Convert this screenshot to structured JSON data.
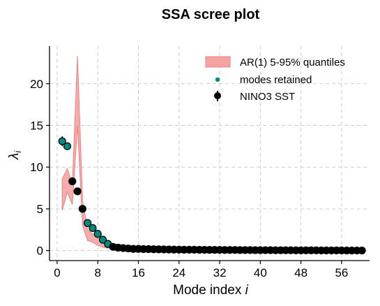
{
  "chart_data": {
    "type": "scatter",
    "title": "SSA scree plot",
    "xlabel": "Mode index",
    "xlabel_var": "i",
    "ylabel_sym": "λ",
    "ylabel_sub": "i",
    "xlim": [
      -1.5,
      61.5
    ],
    "ylim": [
      -1.2,
      24.5
    ],
    "xticks": [
      0,
      8,
      16,
      24,
      32,
      40,
      48,
      56
    ],
    "yticks": [
      0,
      5,
      10,
      15,
      20
    ],
    "grid": true,
    "legend_position": "top-right",
    "legend": {
      "band_label": "AR(1) 5-95% quantiles",
      "retained_label": "modes retained",
      "series_label": "NINO3 SST"
    },
    "colors": {
      "band_fill": "#f4a3a3",
      "band_edge": "#f08080",
      "retained": "#008b80",
      "points": "#000000"
    },
    "series": {
      "x": [
        1,
        2,
        3,
        4,
        5,
        6,
        7,
        8,
        9,
        10,
        11,
        12,
        13,
        14,
        15,
        16,
        17,
        18,
        19,
        20,
        21,
        22,
        23,
        24,
        25,
        26,
        27,
        28,
        29,
        30,
        31,
        32,
        33,
        34,
        35,
        36,
        37,
        38,
        39,
        40,
        41,
        42,
        43,
        44,
        45,
        46,
        47,
        48,
        49,
        50,
        51,
        52,
        53,
        54,
        55,
        56,
        57,
        58,
        59,
        60
      ],
      "y": [
        13.1,
        12.5,
        8.3,
        7.1,
        5.0,
        3.3,
        2.7,
        2.0,
        1.3,
        0.8,
        0.45,
        0.35,
        0.3,
        0.25,
        0.2,
        0.2,
        0.18,
        0.17,
        0.16,
        0.15,
        0.14,
        0.13,
        0.12,
        0.11,
        0.1,
        0.1,
        0.1,
        0.09,
        0.09,
        0.08,
        0.08,
        0.08,
        0.07,
        0.07,
        0.07,
        0.06,
        0.06,
        0.06,
        0.05,
        0.05,
        0.05,
        0.05,
        0.04,
        0.04,
        0.04,
        0.04,
        0.03,
        0.03,
        0.03,
        0.03,
        0.03,
        0.02,
        0.02,
        0.02,
        0.02,
        0.02,
        0.01,
        0.01,
        0.01,
        0.01
      ],
      "err": [
        0.6,
        0.2,
        0.2,
        0.15,
        0.1,
        0.1,
        0.1,
        0.1,
        0.05,
        0.05,
        0,
        0,
        0,
        0,
        0,
        0,
        0,
        0,
        0,
        0,
        0,
        0,
        0,
        0,
        0,
        0,
        0,
        0,
        0,
        0,
        0,
        0,
        0,
        0,
        0,
        0,
        0,
        0,
        0,
        0,
        0,
        0,
        0,
        0,
        0,
        0,
        0,
        0,
        0,
        0,
        0,
        0,
        0,
        0,
        0,
        0,
        0,
        0,
        0,
        0
      ]
    },
    "retained_modes": [
      1,
      2,
      6,
      7,
      8,
      9,
      10
    ],
    "ar1_quantiles": {
      "x": [
        1,
        2,
        3,
        4,
        5,
        6,
        7,
        8,
        9,
        10,
        11,
        12,
        13,
        14,
        15,
        16
      ],
      "lower": [
        4.8,
        7.0,
        5.5,
        15.0,
        3.0,
        1.2,
        1.0,
        0.6,
        0.4,
        0.3,
        0.2,
        0.15,
        0.12,
        0.1,
        0.08,
        0.06
      ],
      "upper": [
        8.6,
        9.8,
        8.0,
        23.3,
        6.0,
        2.5,
        2.0,
        1.5,
        1.0,
        0.8,
        0.55,
        0.4,
        0.3,
        0.25,
        0.2,
        0.15
      ]
    }
  }
}
